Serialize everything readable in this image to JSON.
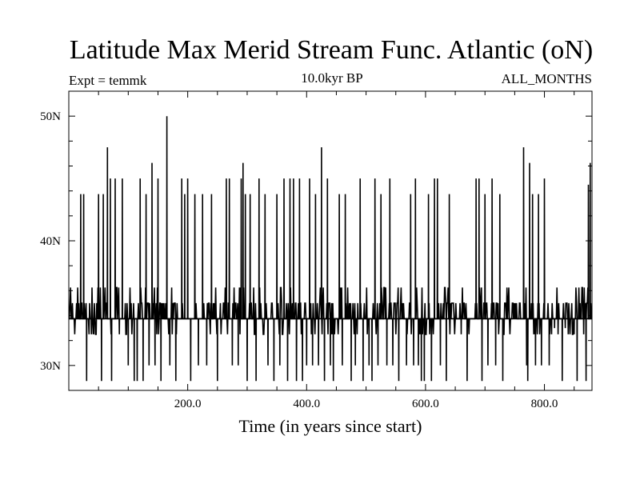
{
  "chart_data": {
    "type": "line",
    "title": "Latitude Max Merid Stream Func. Atlantic (oN)",
    "left_label": "Expt = temmk",
    "center_label": "10.0kyr BP",
    "right_label": "ALL_MONTHS",
    "xlabel": "Time (in years since start)",
    "ylabel": "",
    "xlim": [
      0,
      880
    ],
    "ylim": [
      28,
      52
    ],
    "x_ticks": [
      {
        "value": 200,
        "label": "200.0"
      },
      {
        "value": 400,
        "label": "400.0"
      },
      {
        "value": 600,
        "label": "600.0"
      },
      {
        "value": 800,
        "label": "800.0"
      }
    ],
    "y_ticks": [
      {
        "value": 30,
        "label": "30N"
      },
      {
        "value": 40,
        "label": "40N"
      },
      {
        "value": 50,
        "label": "50N"
      }
    ],
    "baseline": 33.75,
    "series": [
      {
        "spikes": [
          [
            20,
            43.75
          ],
          [
            25,
            43.75
          ],
          [
            30,
            28.75
          ],
          [
            38,
            32.5
          ],
          [
            42,
            32.5
          ],
          [
            50,
            43.75
          ],
          [
            55,
            28.75
          ],
          [
            58,
            43.75
          ],
          [
            65,
            47.5
          ],
          [
            70,
            45
          ],
          [
            72,
            28.75
          ],
          [
            78,
            45
          ],
          [
            85,
            32.5
          ],
          [
            90,
            45
          ],
          [
            100,
            30
          ],
          [
            110,
            28.75
          ],
          [
            115,
            28.75
          ],
          [
            120,
            45
          ],
          [
            125,
            28.75
          ],
          [
            130,
            43.75
          ],
          [
            135,
            30
          ],
          [
            140,
            46.25
          ],
          [
            145,
            30
          ],
          [
            150,
            45
          ],
          [
            155,
            28.75
          ],
          [
            165,
            50
          ],
          [
            170,
            30
          ],
          [
            180,
            28.75
          ],
          [
            190,
            45
          ],
          [
            195,
            43.75
          ],
          [
            200,
            45
          ],
          [
            205,
            28.75
          ],
          [
            212,
            43.75
          ],
          [
            218,
            30
          ],
          [
            225,
            43.75
          ],
          [
            232,
            30
          ],
          [
            240,
            43.75
          ],
          [
            250,
            28.75
          ],
          [
            265,
            45
          ],
          [
            270,
            45
          ],
          [
            275,
            30
          ],
          [
            285,
            30
          ],
          [
            290,
            45
          ],
          [
            293,
            46.25
          ],
          [
            297,
            43.75
          ],
          [
            300,
            28.75
          ],
          [
            305,
            43.75
          ],
          [
            315,
            28.75
          ],
          [
            320,
            45
          ],
          [
            330,
            43.75
          ],
          [
            335,
            30
          ],
          [
            345,
            28.75
          ],
          [
            350,
            43.75
          ],
          [
            355,
            30
          ],
          [
            362,
            45
          ],
          [
            368,
            28.75
          ],
          [
            372,
            45
          ],
          [
            378,
            45
          ],
          [
            383,
            28.75
          ],
          [
            388,
            45
          ],
          [
            393,
            28.75
          ],
          [
            400,
            30
          ],
          [
            405,
            45
          ],
          [
            410,
            30
          ],
          [
            415,
            43.75
          ],
          [
            420,
            30
          ],
          [
            425,
            47.5
          ],
          [
            430,
            28.75
          ],
          [
            435,
            45
          ],
          [
            440,
            30
          ],
          [
            445,
            28.75
          ],
          [
            455,
            43.75
          ],
          [
            460,
            30
          ],
          [
            465,
            43.75
          ],
          [
            475,
            28.75
          ],
          [
            482,
            30
          ],
          [
            490,
            45
          ],
          [
            495,
            28.75
          ],
          [
            505,
            30
          ],
          [
            510,
            28.75
          ],
          [
            515,
            45
          ],
          [
            520,
            30
          ],
          [
            525,
            43.75
          ],
          [
            535,
            30
          ],
          [
            540,
            45
          ],
          [
            545,
            30
          ],
          [
            555,
            28.75
          ],
          [
            568,
            30
          ],
          [
            575,
            43.75
          ],
          [
            580,
            30
          ],
          [
            583,
            45
          ],
          [
            588,
            30
          ],
          [
            593,
            28.75
          ],
          [
            598,
            28.75
          ],
          [
            605,
            43.75
          ],
          [
            610,
            28.75
          ],
          [
            615,
            45
          ],
          [
            620,
            45
          ],
          [
            625,
            30
          ],
          [
            635,
            28.75
          ],
          [
            640,
            43.75
          ],
          [
            660,
            32.5
          ],
          [
            670,
            28.75
          ],
          [
            685,
            45
          ],
          [
            690,
            45
          ],
          [
            695,
            28.75
          ],
          [
            700,
            43.75
          ],
          [
            705,
            30
          ],
          [
            712,
            45
          ],
          [
            718,
            30
          ],
          [
            725,
            43.75
          ],
          [
            730,
            28.75
          ],
          [
            765,
            47.5
          ],
          [
            770,
            30
          ],
          [
            772,
            28.75
          ],
          [
            775,
            46.25
          ],
          [
            780,
            43.75
          ],
          [
            785,
            30
          ],
          [
            790,
            43.75
          ],
          [
            795,
            30
          ],
          [
            800,
            45
          ],
          [
            808,
            30
          ],
          [
            812,
            32.5
          ],
          [
            817,
            33
          ],
          [
            823,
            32.5
          ],
          [
            830,
            28.75
          ],
          [
            835,
            33
          ],
          [
            840,
            32.5
          ],
          [
            850,
            32.5
          ],
          [
            855,
            28.75
          ],
          [
            860,
            35
          ],
          [
            866,
            32.5
          ],
          [
            870,
            28.75
          ],
          [
            874,
            44.5
          ],
          [
            877,
            46.25
          ]
        ],
        "ripple_levels": [
          35,
          36.25,
          32.5
        ]
      }
    ]
  }
}
